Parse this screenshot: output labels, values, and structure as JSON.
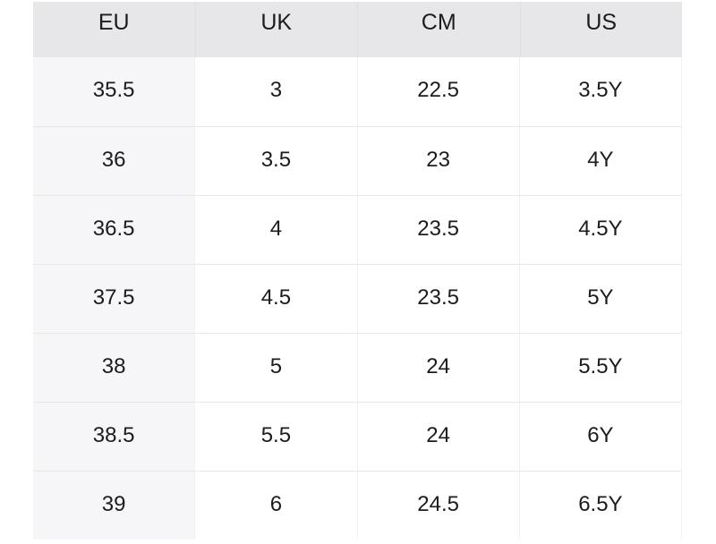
{
  "chart_data": {
    "type": "table",
    "columns": [
      "EU",
      "UK",
      "CM",
      "US"
    ],
    "rows": [
      [
        "35.5",
        "3",
        "22.5",
        "3.5Y"
      ],
      [
        "36",
        "3.5",
        "23",
        "4Y"
      ],
      [
        "36.5",
        "4",
        "23.5",
        "4.5Y"
      ],
      [
        "37.5",
        "4.5",
        "23.5",
        "5Y"
      ],
      [
        "38",
        "5",
        "24",
        "5.5Y"
      ],
      [
        "38.5",
        "5.5",
        "24",
        "6Y"
      ],
      [
        "39",
        "6",
        "24.5",
        "6.5Y"
      ]
    ]
  },
  "colors": {
    "page_bg": "#ffffff",
    "header_bg": "#e7e7e9",
    "first_col_bg": "#f6f6f8",
    "row_border": "#e8e8e9",
    "col_border": "#f0f0f2",
    "header_col_border": "#dedee1",
    "text": "#1c1c1e"
  }
}
